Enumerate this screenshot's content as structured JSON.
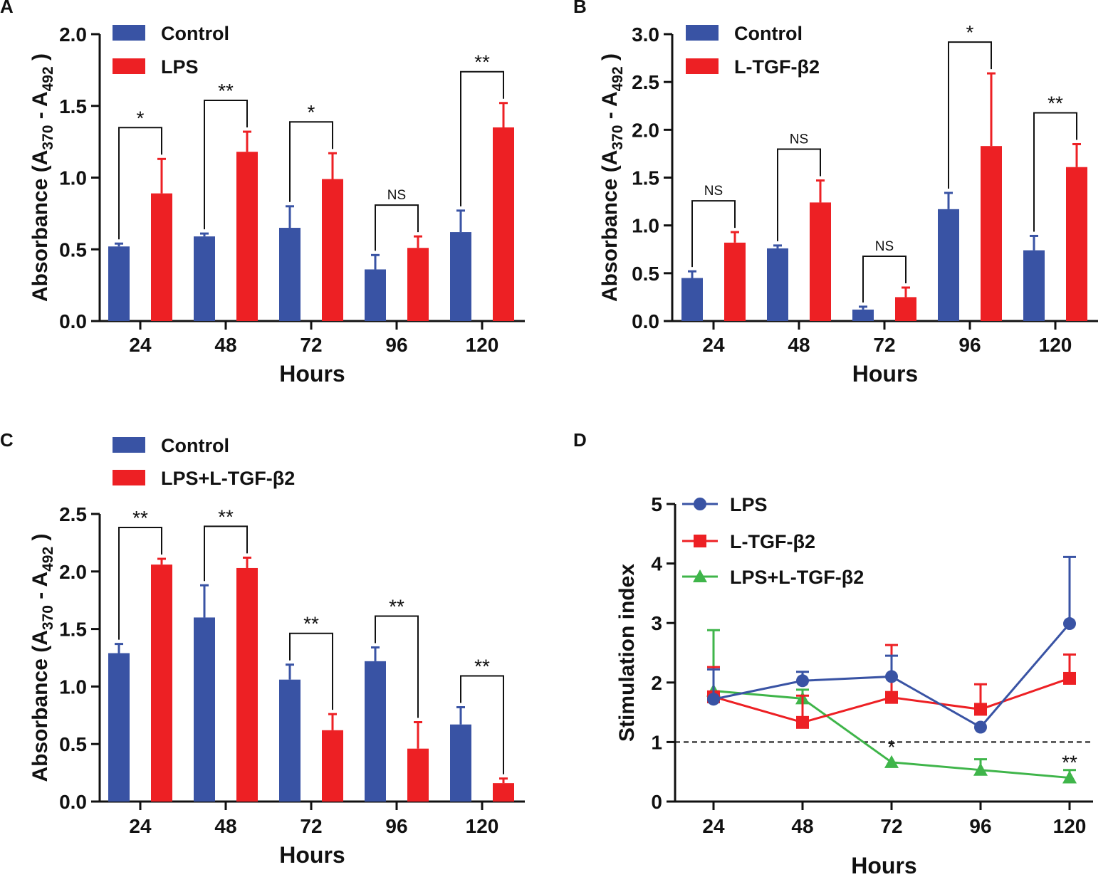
{
  "colors": {
    "control": "#3953a4",
    "treated": "#ed2024",
    "lps": "#3953a4",
    "ltgf": "#ed2024",
    "combo": "#3fb54a"
  },
  "chart_data": [
    {
      "panel": "A",
      "type": "bar",
      "categories": [
        "24",
        "48",
        "72",
        "96",
        "120"
      ],
      "series": [
        {
          "name": "Control",
          "values": [
            0.52,
            0.59,
            0.65,
            0.36,
            0.62
          ],
          "errors": [
            0.02,
            0.02,
            0.15,
            0.1,
            0.15
          ]
        },
        {
          "name": "LPS",
          "values": [
            0.89,
            1.18,
            0.99,
            0.51,
            1.35
          ],
          "errors": [
            0.24,
            0.14,
            0.18,
            0.08,
            0.17
          ]
        }
      ],
      "significance": [
        "*",
        "**",
        "*",
        "NS",
        "**"
      ],
      "xlabel": "Hours",
      "ylabel_main": "Absorbance (A",
      "ylabel_sub1": "370",
      "ylabel_mid": " - A",
      "ylabel_sub2": "492",
      "ylabel_end": " )",
      "ylim": [
        0,
        2.0
      ],
      "yticks": [
        "0.0",
        "0.5",
        "1.0",
        "1.5",
        "2.0"
      ],
      "legend_position": "top-left"
    },
    {
      "panel": "B",
      "type": "bar",
      "categories": [
        "24",
        "48",
        "72",
        "96",
        "120"
      ],
      "series": [
        {
          "name": "Control",
          "values": [
            0.45,
            0.76,
            0.12,
            1.17,
            0.74
          ],
          "errors": [
            0.07,
            0.03,
            0.03,
            0.17,
            0.15
          ]
        },
        {
          "name": "L-TGF-β2",
          "values": [
            0.82,
            1.24,
            0.25,
            1.83,
            1.61
          ],
          "errors": [
            0.11,
            0.23,
            0.1,
            0.76,
            0.24
          ]
        }
      ],
      "significance": [
        "NS",
        "NS",
        "NS",
        "*",
        "**"
      ],
      "xlabel": "Hours",
      "ylabel_main": "Absorbance (A",
      "ylabel_sub1": "370",
      "ylabel_mid": " - A",
      "ylabel_sub2": "492",
      "ylabel_end": " )",
      "ylim": [
        0,
        3.0
      ],
      "yticks": [
        "0.0",
        "0.5",
        "1.0",
        "1.5",
        "2.0",
        "2.5",
        "3.0"
      ],
      "legend_position": "top-left"
    },
    {
      "panel": "C",
      "type": "bar",
      "categories": [
        "24",
        "48",
        "72",
        "96",
        "120"
      ],
      "series": [
        {
          "name": "Control",
          "values": [
            1.29,
            1.6,
            1.06,
            1.22,
            0.67
          ],
          "errors": [
            0.08,
            0.28,
            0.13,
            0.12,
            0.15
          ]
        },
        {
          "name": "LPS+L-TGF-β2",
          "values": [
            2.06,
            2.03,
            0.62,
            0.46,
            0.16
          ],
          "errors": [
            0.05,
            0.09,
            0.14,
            0.23,
            0.04
          ]
        }
      ],
      "significance": [
        "**",
        "**",
        "**",
        "**",
        "**"
      ],
      "xlabel": "Hours",
      "ylabel_main": "Absorbance (A",
      "ylabel_sub1": "370",
      "ylabel_mid": " - A",
      "ylabel_sub2": "492",
      "ylabel_end": " )",
      "ylim": [
        0,
        2.5
      ],
      "yticks": [
        "0.0",
        "0.5",
        "1.0",
        "1.5",
        "2.0",
        "2.5"
      ],
      "legend_position": "top-left"
    },
    {
      "panel": "D",
      "type": "line",
      "x": [
        "24",
        "48",
        "72",
        "96",
        "120"
      ],
      "series": [
        {
          "name": "LPS",
          "marker": "circle",
          "values": [
            1.72,
            2.03,
            2.1,
            1.25,
            2.99
          ],
          "errors": [
            0.5,
            0.15,
            0.35,
            0.0,
            1.12
          ]
        },
        {
          "name": "L-TGF-β2",
          "marker": "square",
          "values": [
            1.76,
            1.33,
            1.75,
            1.55,
            2.07
          ],
          "errors": [
            0.5,
            0.45,
            0.88,
            0.42,
            0.4
          ]
        },
        {
          "name": "LPS+L-TGF-β2",
          "marker": "triangle",
          "values": [
            1.86,
            1.73,
            0.66,
            0.53,
            0.4
          ],
          "errors": [
            1.02,
            0.15,
            0.0,
            0.18,
            0.13
          ]
        }
      ],
      "significance": [
        "",
        "",
        "*",
        "",
        "**"
      ],
      "reference_line": 1,
      "xlabel": "Hours",
      "ylabel": "Stimulation index",
      "ylim": [
        0,
        5
      ],
      "yticks": [
        "0",
        "1",
        "2",
        "3",
        "4",
        "5"
      ],
      "legend_position": "top-left"
    }
  ]
}
